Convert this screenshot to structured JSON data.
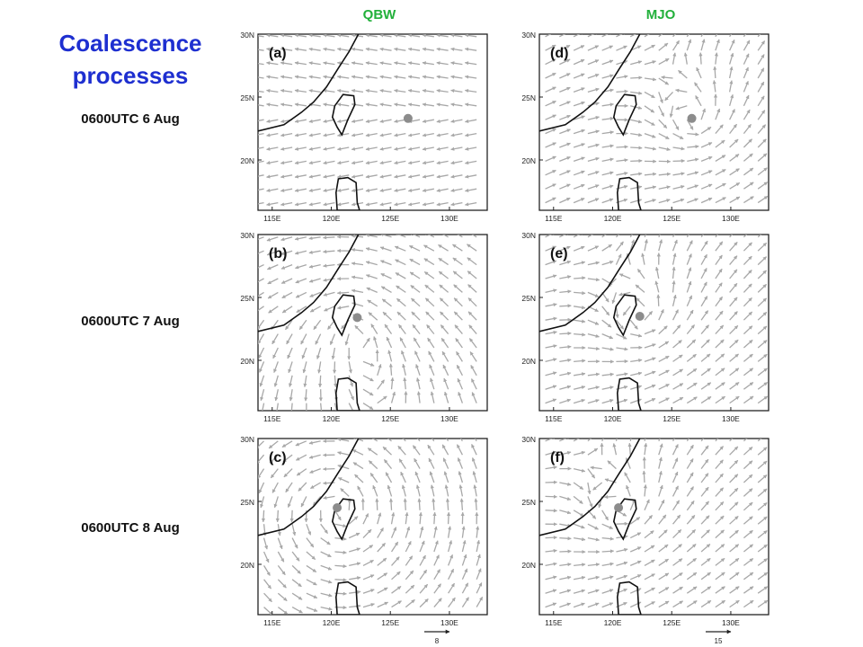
{
  "title_line1": "Coalescence",
  "title_line2": "processes",
  "columns": [
    "QBW",
    "MJO"
  ],
  "times": [
    "0600UTC 6 Aug",
    "0600UTC 7 Aug",
    "0600UTC 8 Aug"
  ],
  "lat_labels": [
    "30N",
    "25N",
    "20N"
  ],
  "lon_labels": [
    "115E",
    "120E",
    "125E",
    "130E"
  ],
  "panels": [
    {
      "label": "(a)",
      "type": "qbw",
      "flow": "west",
      "center": {
        "lon": 126.5,
        "lat": 23.3
      }
    },
    {
      "label": "(b)",
      "type": "qbw",
      "flow": "mixed",
      "center": {
        "lon": 122.2,
        "lat": 23.4
      }
    },
    {
      "label": "(c)",
      "type": "qbw",
      "flow": "cyclone",
      "center": {
        "lon": 120.5,
        "lat": 24.5
      }
    },
    {
      "label": "(d)",
      "type": "mjo",
      "center": {
        "lon": 126.7,
        "lat": 23.3
      }
    },
    {
      "label": "(e)",
      "type": "mjo",
      "center": {
        "lon": 122.3,
        "lat": 23.5
      }
    },
    {
      "label": "(f)",
      "type": "mjo",
      "center": {
        "lon": 120.5,
        "lat": 24.5
      }
    }
  ],
  "reference_vectors": [
    "8",
    "15"
  ],
  "colors": {
    "title": "#1e2fd0",
    "column_label": "#22b03b",
    "vector": "#a8a8a8",
    "center_dot": "#8c8c8c",
    "coast": "#111111"
  }
}
